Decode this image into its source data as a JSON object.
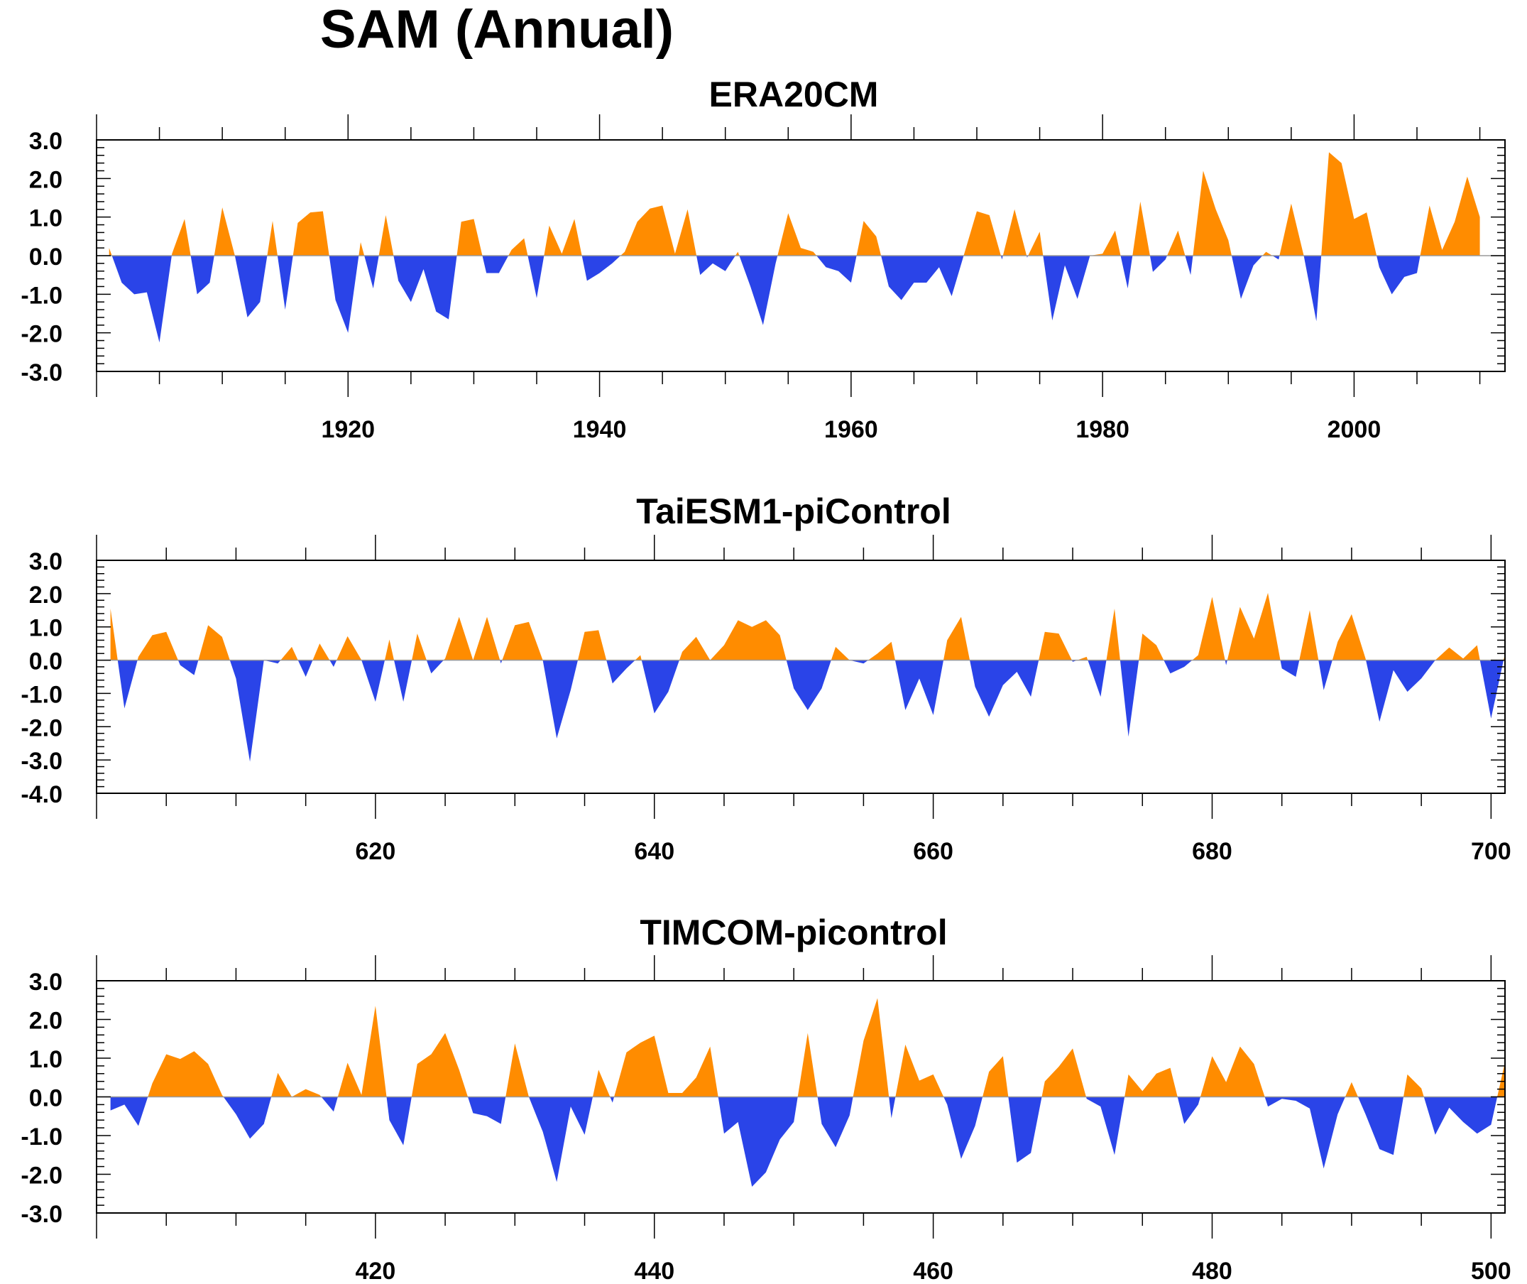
{
  "main_title": "SAM (Annual)",
  "colors": {
    "positive": "#FF8C00",
    "negative": "#2A44E8",
    "axis": "#000000"
  },
  "chart_data": [
    {
      "type": "area",
      "title": "ERA20CM",
      "x_start": 1901,
      "x_step": 1,
      "xlim": [
        1900,
        2012
      ],
      "x_major_ticks": [
        1920,
        1940,
        1960,
        1980,
        2000
      ],
      "x_tick_labels": [
        "1920",
        "1940",
        "1960",
        "1980",
        "2000"
      ],
      "ylim": [
        -3.0,
        3.0
      ],
      "y_major_ticks": [
        3.0,
        2.0,
        1.0,
        0.0,
        -1.0,
        -2.0,
        -3.0
      ],
      "y_tick_labels": [
        "3.0",
        "2.0",
        "1.0",
        "0.0",
        "-1.0",
        "-2.0",
        "-3.0"
      ],
      "values": [
        0.2,
        -0.7,
        -1.0,
        -0.95,
        -2.25,
        0.05,
        0.95,
        -1.0,
        -0.7,
        1.25,
        0.0,
        -1.6,
        -1.2,
        0.9,
        -1.4,
        0.85,
        1.12,
        1.15,
        -1.15,
        -2.0,
        0.35,
        -0.85,
        1.05,
        -0.65,
        -1.2,
        -0.35,
        -1.45,
        -1.65,
        0.88,
        0.95,
        -0.45,
        -0.45,
        0.15,
        0.45,
        -1.1,
        0.78,
        0.05,
        0.95,
        -0.65,
        -0.45,
        -0.2,
        0.1,
        0.88,
        1.22,
        1.3,
        0.05,
        1.2,
        -0.5,
        -0.2,
        -0.4,
        0.1,
        -0.8,
        -1.8,
        -0.2,
        1.1,
        0.2,
        0.1,
        -0.3,
        -0.4,
        -0.7,
        0.9,
        0.5,
        -0.8,
        -1.15,
        -0.7,
        -0.7,
        -0.3,
        -1.05,
        0.05,
        1.15,
        1.05,
        -0.1,
        1.2,
        -0.05,
        0.62,
        -1.68,
        -0.25,
        -1.12,
        0.0,
        0.05,
        0.65,
        -0.85,
        1.4,
        -0.42,
        -0.1,
        0.65,
        -0.5,
        2.2,
        1.2,
        0.4,
        -1.12,
        -0.25,
        0.1,
        -0.1,
        1.35,
        0.0,
        -1.7,
        2.68,
        2.4,
        0.95,
        1.12,
        -0.3,
        -1.0,
        -0.55,
        -0.45,
        1.3,
        0.15,
        0.88,
        2.05,
        1.0
      ]
    },
    {
      "type": "area",
      "title": "TaiESM1-piControl",
      "x_start": 601,
      "x_step": 1,
      "xlim": [
        600,
        701
      ],
      "x_major_ticks": [
        620,
        640,
        660,
        680,
        700
      ],
      "x_tick_labels": [
        "620",
        "640",
        "660",
        "680",
        "700"
      ],
      "ylim": [
        -4.0,
        3.0
      ],
      "y_major_ticks": [
        3.0,
        2.0,
        1.0,
        0.0,
        -1.0,
        -2.0,
        -3.0,
        -4.0
      ],
      "y_tick_labels": [
        "3.0",
        "2.0",
        "1.0",
        "0.0",
        "-1.0",
        "-2.0",
        "-3.0",
        "-4.0"
      ],
      "values": [
        1.55,
        -1.45,
        0.1,
        0.75,
        0.85,
        -0.15,
        -0.45,
        1.05,
        0.7,
        -0.55,
        -3.05,
        0.0,
        -0.1,
        0.4,
        -0.5,
        0.5,
        -0.2,
        0.72,
        0.0,
        -1.25,
        0.62,
        -1.25,
        0.8,
        -0.4,
        0.05,
        1.3,
        0.0,
        1.3,
        -0.1,
        1.05,
        1.15,
        0.0,
        -2.35,
        -0.9,
        0.85,
        0.9,
        -0.7,
        -0.25,
        0.15,
        -1.6,
        -0.95,
        0.25,
        0.7,
        0.0,
        0.45,
        1.2,
        1.0,
        1.2,
        0.75,
        -0.85,
        -1.5,
        -0.85,
        0.4,
        0.0,
        -0.1,
        0.2,
        0.55,
        -1.5,
        -0.55,
        -1.65,
        0.6,
        1.3,
        -0.8,
        -1.7,
        -0.75,
        -0.35,
        -1.1,
        0.85,
        0.8,
        -0.05,
        0.1,
        -1.1,
        1.55,
        -2.3,
        0.8,
        0.45,
        -0.4,
        -0.2,
        0.15,
        1.9,
        -0.15,
        1.6,
        0.65,
        2.02,
        -0.25,
        -0.5,
        1.5,
        -0.9,
        0.55,
        1.38,
        0.05,
        -1.85,
        -0.3,
        -0.95,
        -0.55,
        0.0,
        0.38,
        0.05,
        0.45,
        -1.75,
        0.2
      ]
    },
    {
      "type": "area",
      "title": "TIMCOM-picontrol",
      "x_start": 401,
      "x_step": 1,
      "xlim": [
        400,
        501
      ],
      "x_major_ticks": [
        420,
        440,
        460,
        480,
        500
      ],
      "x_tick_labels": [
        "420",
        "440",
        "460",
        "480",
        "500"
      ],
      "ylim": [
        -3.0,
        3.0
      ],
      "y_major_ticks": [
        3.0,
        2.0,
        1.0,
        0.0,
        -1.0,
        -2.0,
        -3.0
      ],
      "y_tick_labels": [
        "3.0",
        "2.0",
        "1.0",
        "0.0",
        "-1.0",
        "-2.0",
        "-3.0"
      ],
      "values": [
        -0.35,
        -0.2,
        -0.75,
        0.35,
        1.1,
        0.98,
        1.18,
        0.85,
        0.05,
        -0.45,
        -1.08,
        -0.7,
        0.62,
        0.0,
        0.2,
        0.05,
        -0.38,
        0.88,
        0.05,
        2.35,
        -0.6,
        -1.25,
        0.85,
        1.1,
        1.65,
        0.7,
        -0.42,
        -0.5,
        -0.7,
        1.38,
        0.0,
        -0.9,
        -2.2,
        -0.25,
        -0.98,
        0.7,
        -0.15,
        1.15,
        1.4,
        1.58,
        0.1,
        0.1,
        0.5,
        1.3,
        -0.95,
        -0.65,
        -2.32,
        -1.95,
        -1.1,
        -0.65,
        1.65,
        -0.7,
        -1.3,
        -0.48,
        1.45,
        2.55,
        -0.55,
        1.35,
        0.42,
        0.58,
        -0.2,
        -1.6,
        -0.75,
        0.65,
        1.05,
        -1.7,
        -1.45,
        0.4,
        0.78,
        1.25,
        -0.05,
        -0.25,
        -1.5,
        0.58,
        0.15,
        0.6,
        0.75,
        -0.7,
        -0.2,
        1.05,
        0.38,
        1.3,
        0.85,
        -0.25,
        -0.05,
        -0.1,
        -0.3,
        -1.85,
        -0.45,
        0.38,
        -0.45,
        -1.35,
        -1.5,
        0.58,
        0.22,
        -0.98,
        -0.28,
        -0.65,
        -0.95,
        -0.72,
        0.9
      ]
    }
  ]
}
